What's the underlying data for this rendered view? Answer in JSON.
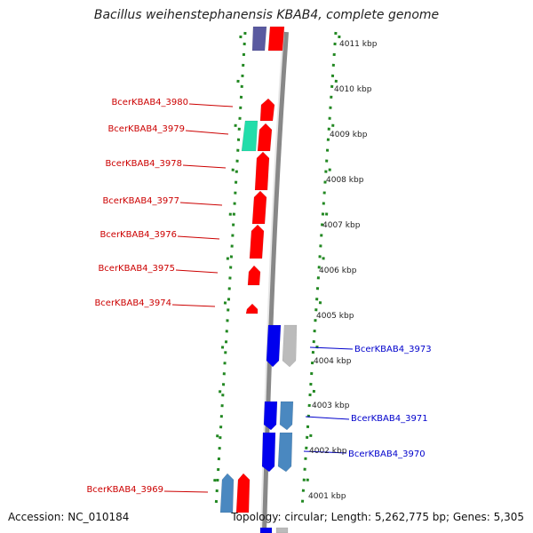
{
  "title": "Bacillus weihenstephanensis KBAB4, complete genome",
  "accession": "Accession: NC_010184",
  "topology": "Topology: circular; Length: 5,262,775 bp; Genes: 5,305",
  "colors": {
    "forward_gene": "#ff0000",
    "reverse_gene": "#0000ee",
    "reverse_alt_gene": "#4a88c0",
    "rna_gene": "#22ddaa",
    "other_gene": "#bbbbbb",
    "purple_gene": "#5a5aa0",
    "tick_mark": "#228822",
    "backbone": "#777777",
    "forward_label": "#cc0000",
    "reverse_label": "#0000cc"
  },
  "ticks": [
    "4011 kbp",
    "4010 kbp",
    "4009 kbp",
    "4008 kbp",
    "4007 kbp",
    "4006 kbp",
    "4005 kbp",
    "4004 kbp",
    "4003 kbp",
    "4002 kbp",
    "4001 kbp"
  ],
  "forward_labels": [
    "BcerKBAB4_3980",
    "BcerKBAB4_3979",
    "BcerKBAB4_3978",
    "BcerKBAB4_3977",
    "BcerKBAB4_3976",
    "BcerKBAB4_3975",
    "BcerKBAB4_3974",
    "BcerKBAB4_3969"
  ],
  "reverse_labels": [
    "BcerKBAB4_3973",
    "BcerKBAB4_3971",
    "BcerKBAB4_3970"
  ]
}
